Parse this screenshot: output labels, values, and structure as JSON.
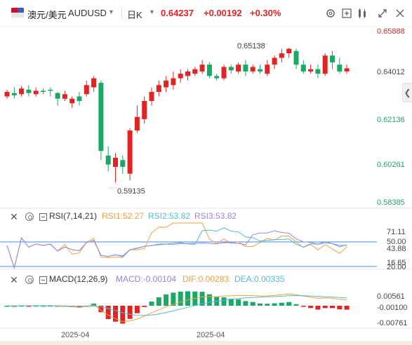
{
  "header": {
    "symbol_name": "澳元/美元",
    "symbol_code": "AUDUSD",
    "dropdown_icon": "▼",
    "period": "日K",
    "last_price": "0.64237",
    "change": "+0.00192",
    "change_pct": "+0.30%",
    "icons": [
      "settings-icon",
      "compare-icon",
      "grid-icon",
      "expand-icon",
      "close-icon"
    ]
  },
  "colors": {
    "up": "#e02424",
    "down": "#1aa866",
    "rsi1": "#f0a040",
    "rsi2": "#56b9d6",
    "rsi3": "#a085d6",
    "macd": "#9b7fd1",
    "dif": "#f0a040",
    "dea": "#56b9d6",
    "ref_line": "#3d8be8"
  },
  "price_axis": {
    "labels": [
      "0.65888",
      "0.64012",
      "0.62136",
      "0.60261",
      "0.58385"
    ],
    "max_marker": "0.65138",
    "min_marker": "0.59135"
  },
  "rsi": {
    "label": "RSI(7,14,21)",
    "rsi1": "RSI1:52.27",
    "rsi2": "RSI2:53.82",
    "rsi3": "RSI3:53.82",
    "axis": [
      "71.11",
      "50.00",
      "43.88",
      "16.65",
      "20.00"
    ]
  },
  "macd": {
    "label": "MACD(12,26,9)",
    "macd": "MACD:-0.00104",
    "dif": "DIF:0.00283",
    "dea": "DEA:0.00335",
    "axis": [
      "0.00561",
      "-0.00100",
      "-0.00761"
    ]
  },
  "time_axis": [
    "2025-04",
    "2025-04"
  ],
  "chart_data": {
    "type": "candlestick",
    "price_ylim": [
      0.58385,
      0.65888
    ],
    "candles": [
      [
        0.63,
        0.632,
        0.629,
        0.633
      ],
      [
        0.6315,
        0.6305,
        0.629,
        0.634
      ],
      [
        0.631,
        0.6335,
        0.63,
        0.6345
      ],
      [
        0.633,
        0.6315,
        0.63,
        0.635
      ],
      [
        0.631,
        0.6325,
        0.63,
        0.634
      ],
      [
        0.6325,
        0.632,
        0.631,
        0.6335
      ],
      [
        0.633,
        0.6325,
        0.63,
        0.634
      ],
      [
        0.6315,
        0.629,
        0.626,
        0.632
      ],
      [
        0.629,
        0.631,
        0.628,
        0.6325
      ],
      [
        0.627,
        0.629,
        0.625,
        0.63
      ],
      [
        0.63,
        0.628,
        0.626,
        0.632
      ],
      [
        0.631,
        0.635,
        0.63,
        0.637
      ],
      [
        0.634,
        0.638,
        0.632,
        0.639
      ],
      [
        0.636,
        0.606,
        0.602,
        0.637
      ],
      [
        0.604,
        0.6,
        0.597,
        0.608
      ],
      [
        0.599,
        0.603,
        0.592,
        0.605
      ],
      [
        0.602,
        0.599,
        0.596,
        0.604
      ],
      [
        0.596,
        0.615,
        0.593,
        0.616
      ],
      [
        0.615,
        0.621,
        0.614,
        0.626
      ],
      [
        0.62,
        0.628,
        0.618,
        0.63
      ],
      [
        0.628,
        0.632,
        0.626,
        0.634
      ],
      [
        0.632,
        0.635,
        0.63,
        0.637
      ],
      [
        0.634,
        0.637,
        0.632,
        0.639
      ],
      [
        0.635,
        0.638,
        0.633,
        0.641
      ],
      [
        0.638,
        0.64,
        0.636,
        0.642
      ],
      [
        0.639,
        0.641,
        0.637,
        0.642
      ],
      [
        0.64,
        0.642,
        0.639,
        0.643
      ],
      [
        0.641,
        0.644,
        0.64,
        0.646
      ],
      [
        0.644,
        0.639,
        0.638,
        0.645
      ],
      [
        0.639,
        0.638,
        0.637,
        0.64
      ],
      [
        0.638,
        0.643,
        0.637,
        0.644
      ],
      [
        0.643,
        0.6415,
        0.64,
        0.644
      ],
      [
        0.641,
        0.644,
        0.64,
        0.645
      ],
      [
        0.644,
        0.641,
        0.639,
        0.646
      ],
      [
        0.641,
        0.643,
        0.64,
        0.644
      ],
      [
        0.642,
        0.641,
        0.64,
        0.644
      ],
      [
        0.64,
        0.644,
        0.639,
        0.646
      ],
      [
        0.644,
        0.647,
        0.642,
        0.648
      ],
      [
        0.647,
        0.649,
        0.645,
        0.651
      ],
      [
        0.649,
        0.651,
        0.647,
        0.6514
      ],
      [
        0.65,
        0.644,
        0.642,
        0.651
      ],
      [
        0.644,
        0.641,
        0.64,
        0.646
      ],
      [
        0.641,
        0.642,
        0.64,
        0.644
      ],
      [
        0.642,
        0.64,
        0.638,
        0.644
      ],
      [
        0.64,
        0.648,
        0.639,
        0.649
      ],
      [
        0.648,
        0.645,
        0.642,
        0.65
      ],
      [
        0.644,
        0.641,
        0.64,
        0.647
      ],
      [
        0.641,
        0.6424,
        0.64,
        0.644
      ]
    ]
  }
}
